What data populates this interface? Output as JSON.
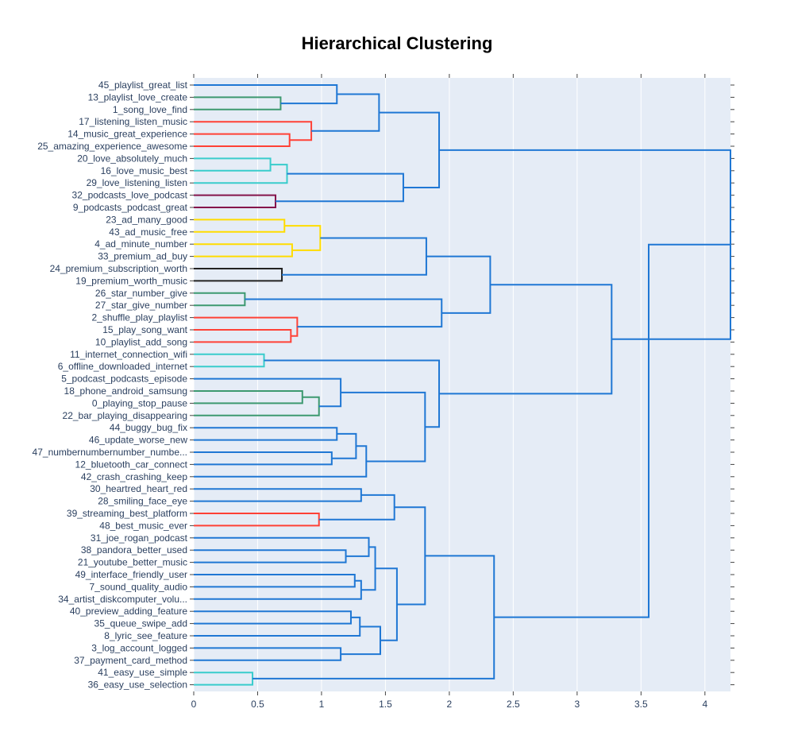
{
  "chart_data": {
    "type": "dendrogram",
    "title": "Hierarchical Clustering",
    "orientation": "horizontal",
    "xlim": [
      0,
      4.2
    ],
    "x_ticks": [
      0,
      0.5,
      1,
      1.5,
      2,
      2.5,
      3,
      3.5,
      4
    ],
    "x_tick_labels": [
      "0",
      "0.5",
      "1",
      "1.5",
      "2",
      "2.5",
      "3",
      "3.5",
      "4"
    ],
    "background": "#E5ECF6",
    "leaves": [
      "45_playlist_great_list",
      "13_playlist_love_create",
      "1_song_love_find",
      "17_listening_listen_music",
      "14_music_great_experience",
      "25_amazing_experience_awesome",
      "20_love_absolutely_much",
      "16_love_music_best",
      "29_love_listening_listen",
      "32_podcasts_love_podcast",
      "9_podcasts_podcast_great",
      "23_ad_many_good",
      "43_ad_music_free",
      "4_ad_minute_number",
      "33_premium_ad_buy",
      "24_premium_subscription_worth",
      "19_premium_worth_music",
      "26_star_number_give",
      "27_star_give_number",
      "2_shuffle_play_playlist",
      "15_play_song_want",
      "10_playlist_add_song",
      "11_internet_connection_wifi",
      "6_offline_downloaded_internet",
      "5_podcast_podcasts_episode",
      "18_phone_android_samsung",
      "0_playing_stop_pause",
      "22_bar_playing_disappearing",
      "44_buggy_bug_fix",
      "46_update_worse_new",
      "47_numbernumbernumber_numbe...",
      "12_bluetooth_car_connect",
      "42_crash_crashing_keep",
      "30_heartred_heart_red",
      "28_smiling_face_eye",
      "39_streaming_best_platform",
      "48_best_music_ever",
      "31_joe_rogan_podcast",
      "38_pandora_better_used",
      "21_youtube_better_music",
      "49_interface_friendly_user",
      "7_sound_quality_audio",
      "34_artist_diskcomputer_volu...",
      "40_preview_adding_feature",
      "35_queue_swipe_add",
      "8_lyric_see_feature",
      "3_log_account_logged",
      "37_payment_card_method",
      "41_easy_use_simple",
      "36_easy_use_selection"
    ],
    "colors": {
      "blue": "#1f77d4",
      "green": "#3d9970",
      "red": "#ff4136",
      "cyan": "#39cccc",
      "purple": "#85144b",
      "yellow": "#ffdc00",
      "black": "#222222"
    },
    "merges": [
      {
        "id": "m1",
        "a": "13_playlist_love_create",
        "b": "1_song_love_find",
        "d": 0.68,
        "color": "green"
      },
      {
        "id": "m2",
        "a": "45_playlist_great_list",
        "b": "m1",
        "d": 1.12,
        "color": "blue"
      },
      {
        "id": "m3",
        "a": "14_music_great_experience",
        "b": "25_amazing_experience_awesome",
        "d": 0.75,
        "color": "red"
      },
      {
        "id": "m4",
        "a": "17_listening_listen_music",
        "b": "m3",
        "d": 0.92,
        "color": "red"
      },
      {
        "id": "m5",
        "a": "m2",
        "b": "m4",
        "d": 1.45,
        "color": "blue"
      },
      {
        "id": "m6",
        "a": "20_love_absolutely_much",
        "b": "16_love_music_best",
        "d": 0.6,
        "color": "cyan"
      },
      {
        "id": "m7",
        "a": "m6",
        "b": "29_love_listening_listen",
        "d": 0.73,
        "color": "cyan"
      },
      {
        "id": "m8",
        "a": "32_podcasts_love_podcast",
        "b": "9_podcasts_podcast_great",
        "d": 0.64,
        "color": "purple"
      },
      {
        "id": "m9",
        "a": "m7",
        "b": "m8",
        "d": 1.64,
        "color": "blue"
      },
      {
        "id": "m10",
        "a": "m5",
        "b": "m9",
        "d": 1.92,
        "color": "blue"
      },
      {
        "id": "m11",
        "a": "23_ad_many_good",
        "b": "43_ad_music_free",
        "d": 0.71,
        "color": "yellow"
      },
      {
        "id": "m12",
        "a": "4_ad_minute_number",
        "b": "33_premium_ad_buy",
        "d": 0.77,
        "color": "yellow"
      },
      {
        "id": "m13",
        "a": "m11",
        "b": "m12",
        "d": 0.99,
        "color": "yellow"
      },
      {
        "id": "m14",
        "a": "24_premium_subscription_worth",
        "b": "19_premium_worth_music",
        "d": 0.69,
        "color": "black"
      },
      {
        "id": "m15",
        "a": "m13",
        "b": "m14",
        "d": 1.82,
        "color": "blue"
      },
      {
        "id": "m16",
        "a": "26_star_number_give",
        "b": "27_star_give_number",
        "d": 0.4,
        "color": "green"
      },
      {
        "id": "m17",
        "a": "15_play_song_want",
        "b": "10_playlist_add_song",
        "d": 0.76,
        "color": "red"
      },
      {
        "id": "m18",
        "a": "2_shuffle_play_playlist",
        "b": "m17",
        "d": 0.81,
        "color": "red"
      },
      {
        "id": "m19",
        "a": "m16",
        "b": "m18",
        "d": 1.94,
        "color": "blue"
      },
      {
        "id": "m20",
        "a": "m15",
        "b": "m19",
        "d": 2.32,
        "color": "blue"
      },
      {
        "id": "m21",
        "a": "11_internet_connection_wifi",
        "b": "6_offline_downloaded_internet",
        "d": 0.55,
        "color": "cyan"
      },
      {
        "id": "m22",
        "a": "18_phone_android_samsung",
        "b": "0_playing_stop_pause",
        "d": 0.85,
        "color": "green"
      },
      {
        "id": "m23",
        "a": "m22",
        "b": "22_bar_playing_disappearing",
        "d": 0.98,
        "color": "green"
      },
      {
        "id": "m24",
        "a": "5_podcast_podcasts_episode",
        "b": "m23",
        "d": 1.15,
        "color": "blue"
      },
      {
        "id": "m25",
        "a": "44_buggy_bug_fix",
        "b": "46_update_worse_new",
        "d": 1.12,
        "color": "blue"
      },
      {
        "id": "m26",
        "a": "47_numbernumbernumber_numbe...",
        "b": "12_bluetooth_car_connect",
        "d": 1.08,
        "color": "blue"
      },
      {
        "id": "m27",
        "a": "m25",
        "b": "m26",
        "d": 1.27,
        "color": "blue"
      },
      {
        "id": "m28",
        "a": "m27",
        "b": "42_crash_crashing_keep",
        "d": 1.35,
        "color": "blue"
      },
      {
        "id": "m29",
        "a": "m24",
        "b": "m28",
        "d": 1.81,
        "color": "blue"
      },
      {
        "id": "m30",
        "a": "m21",
        "b": "m29",
        "d": 1.92,
        "color": "blue"
      },
      {
        "id": "m31",
        "a": "m20",
        "b": "m30",
        "d": 3.27,
        "color": "blue"
      },
      {
        "id": "m32",
        "a": "m10",
        "b": "m31",
        "d": 4.21,
        "color": "blue"
      },
      {
        "id": "m33",
        "a": "30_heartred_heart_red",
        "b": "28_smiling_face_eye",
        "d": 1.31,
        "color": "blue"
      },
      {
        "id": "m34",
        "a": "39_streaming_best_platform",
        "b": "48_best_music_ever",
        "d": 0.98,
        "color": "red"
      },
      {
        "id": "m35",
        "a": "m33",
        "b": "m34",
        "d": 1.57,
        "color": "blue"
      },
      {
        "id": "m36",
        "a": "38_pandora_better_used",
        "b": "21_youtube_better_music",
        "d": 1.19,
        "color": "blue"
      },
      {
        "id": "m37",
        "a": "31_joe_rogan_podcast",
        "b": "m36",
        "d": 1.37,
        "color": "blue"
      },
      {
        "id": "m38",
        "a": "49_interface_friendly_user",
        "b": "7_sound_quality_audio",
        "d": 1.26,
        "color": "blue"
      },
      {
        "id": "m39",
        "a": "m38",
        "b": "34_artist_diskcomputer_volu...",
        "d": 1.31,
        "color": "blue"
      },
      {
        "id": "m40",
        "a": "m37",
        "b": "m39",
        "d": 1.42,
        "color": "blue"
      },
      {
        "id": "m41",
        "a": "40_preview_adding_feature",
        "b": "35_queue_swipe_add",
        "d": 1.23,
        "color": "blue"
      },
      {
        "id": "m42",
        "a": "m41",
        "b": "8_lyric_see_feature",
        "d": 1.3,
        "color": "blue"
      },
      {
        "id": "m43",
        "a": "3_log_account_logged",
        "b": "37_payment_card_method",
        "d": 1.15,
        "color": "blue"
      },
      {
        "id": "m44",
        "a": "m42",
        "b": "m43",
        "d": 1.46,
        "color": "blue"
      },
      {
        "id": "m45",
        "a": "m40",
        "b": "m44",
        "d": 1.59,
        "color": "blue"
      },
      {
        "id": "m46",
        "a": "m35",
        "b": "m45",
        "d": 1.81,
        "color": "blue"
      },
      {
        "id": "m47",
        "a": "41_easy_use_simple",
        "b": "36_easy_use_selection",
        "d": 0.46,
        "color": "cyan"
      },
      {
        "id": "m48",
        "a": "m46",
        "b": "m47",
        "d": 2.35,
        "color": "blue"
      },
      {
        "id": "m49",
        "a": "m32",
        "b": "m48",
        "d": 3.56,
        "color": "blue"
      }
    ]
  }
}
